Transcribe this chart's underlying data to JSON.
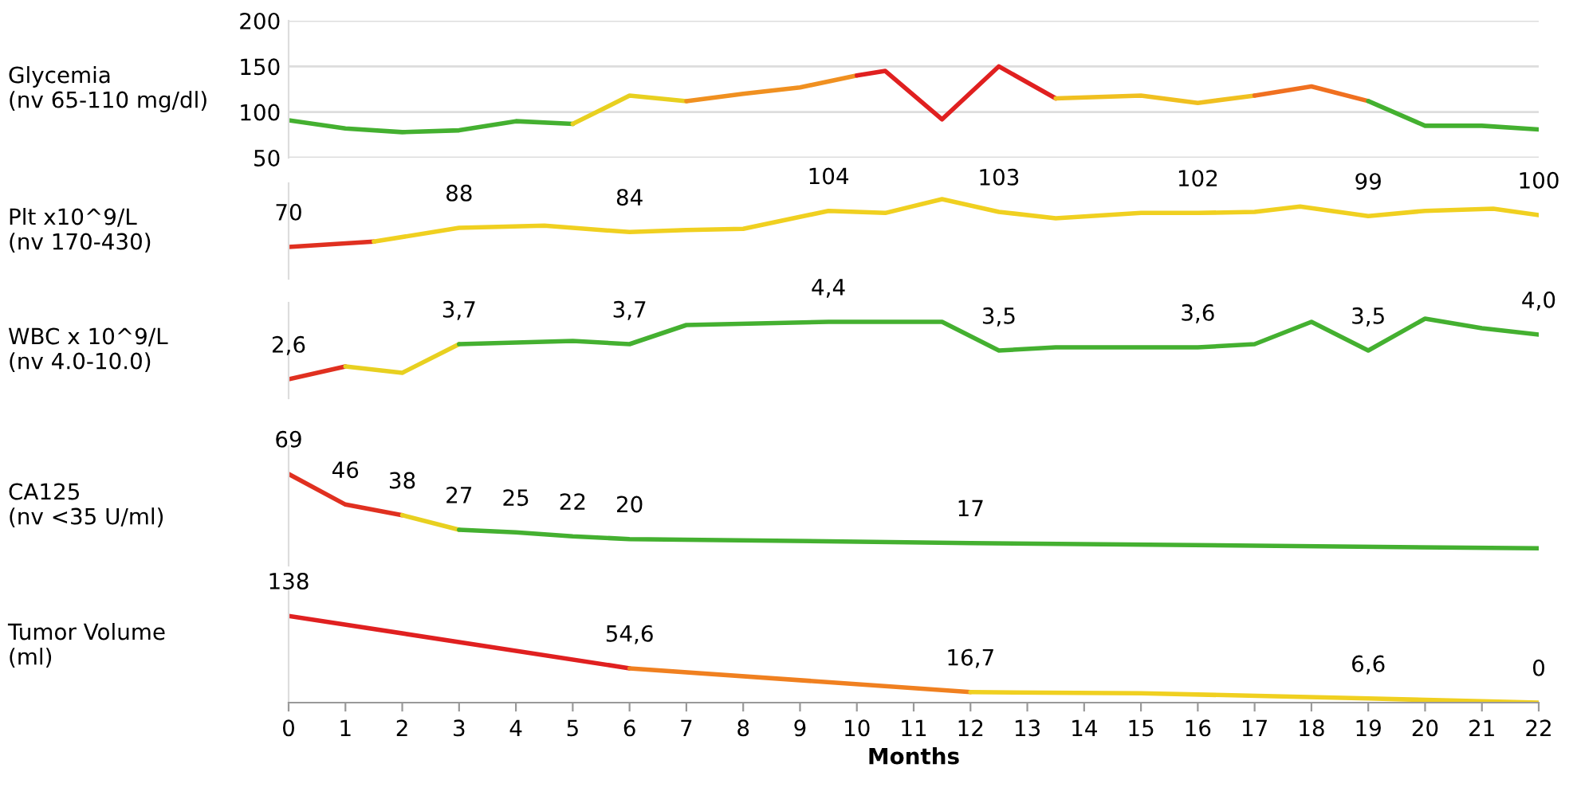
{
  "chart_data": [
    {
      "type": "line",
      "ylabel": "Glycemia\n(nv 65-110 mg/dl)",
      "xlim": [
        0,
        22
      ],
      "ylim": [
        50,
        200
      ],
      "yticks": [
        50,
        100,
        150,
        200
      ],
      "grid": "y",
      "tick_labels": "y",
      "series": [
        {
          "x": [
            0,
            1,
            2,
            3,
            4,
            5
          ],
          "values": [
            91,
            82,
            78,
            80,
            90,
            87
          ],
          "color": "#44b030"
        },
        {
          "x": [
            5,
            6,
            7
          ],
          "values": [
            87,
            118,
            112
          ],
          "color": "#e8d020"
        },
        {
          "x": [
            7,
            8,
            9,
            10
          ],
          "values": [
            112,
            120,
            127,
            140
          ],
          "color": "#f09020"
        },
        {
          "x": [
            10,
            10.5,
            11.5,
            12.5,
            13.5
          ],
          "values": [
            140,
            145,
            92,
            150,
            115
          ],
          "color": "#e02020"
        },
        {
          "x": [
            13.5,
            15,
            16,
            17
          ],
          "values": [
            115,
            118,
            110,
            118
          ],
          "color": "#f0c020"
        },
        {
          "x": [
            17,
            18,
            19
          ],
          "values": [
            118,
            128,
            112
          ],
          "color": "#f07020"
        },
        {
          "x": [
            19,
            20,
            21,
            22
          ],
          "values": [
            112,
            85,
            85,
            81
          ],
          "color": "#44b030"
        }
      ]
    },
    {
      "type": "line",
      "ylabel": "Plt x10^9/L\n(nv 170-430)",
      "xlim": [
        0,
        22
      ],
      "ylim": [
        40,
        130
      ],
      "tick_labels": false,
      "series": [
        {
          "x": [
            0,
            1.5
          ],
          "values": [
            70,
            75
          ],
          "value_labels": [
            "70",
            null
          ],
          "color": "#e03020"
        },
        {
          "x": [
            1.5,
            3,
            4.5,
            6,
            7,
            8,
            9.5,
            10.5,
            11.5,
            12.5,
            13.5,
            15,
            16,
            17,
            17.8,
            19,
            20,
            21.2,
            22
          ],
          "values": [
            75,
            88,
            90,
            84,
            86,
            87,
            104,
            102,
            115,
            103,
            97,
            102,
            102,
            103,
            108,
            99,
            104,
            106,
            100
          ],
          "value_labels": [
            null,
            "88",
            null,
            "84",
            null,
            null,
            "104",
            null,
            null,
            "103",
            null,
            null,
            "102",
            null,
            null,
            "99",
            null,
            null,
            "100"
          ],
          "color": "#f0d020"
        }
      ]
    },
    {
      "type": "line",
      "ylabel": "WBC x 10^9/L\n(nv 4.0-10.0)",
      "xlim": [
        0,
        22
      ],
      "ylim": [
        2,
        5
      ],
      "tick_labels": false,
      "series": [
        {
          "x": [
            0,
            1
          ],
          "values": [
            2.6,
            3.0
          ],
          "value_labels": [
            "2,6",
            null
          ],
          "color": "#e03020"
        },
        {
          "x": [
            1,
            2,
            3
          ],
          "values": [
            3.0,
            2.8,
            3.7
          ],
          "color": "#e8d020"
        },
        {
          "x": [
            3,
            5,
            6,
            7,
            9.5,
            11.5,
            12.5,
            13.5,
            16,
            17,
            18,
            19,
            20,
            21,
            22
          ],
          "values": [
            3.7,
            3.8,
            3.7,
            4.3,
            4.4,
            4.4,
            3.5,
            3.6,
            3.6,
            3.7,
            4.4,
            3.5,
            4.5,
            4.2,
            4.0
          ],
          "value_labels": [
            "3,7",
            null,
            "3,7",
            null,
            "4,4",
            null,
            "3,5",
            null,
            "3,6",
            null,
            null,
            "3,5",
            null,
            null,
            "4,0"
          ],
          "color": "#44b030"
        }
      ]
    },
    {
      "type": "line",
      "ylabel": "CA125\n(nv <35 U/ml)",
      "xlim": [
        0,
        22
      ],
      "ylim": [
        0,
        90
      ],
      "tick_labels": false,
      "series": [
        {
          "x": [
            0,
            1,
            2
          ],
          "values": [
            69,
            46,
            38
          ],
          "value_labels": [
            "69",
            "46",
            "38"
          ],
          "color": "#e03020"
        },
        {
          "x": [
            2,
            3
          ],
          "values": [
            38,
            27
          ],
          "color": "#e8d020"
        },
        {
          "x": [
            3,
            4,
            5,
            6,
            12,
            22
          ],
          "values": [
            27,
            25,
            22,
            20,
            17,
            13
          ],
          "value_labels": [
            "27",
            "25",
            "22",
            "20",
            "17",
            null
          ],
          "color": "#44b030"
        }
      ]
    },
    {
      "type": "line",
      "ylabel": "Tumor Volume\n(ml)",
      "xlabel": "Months",
      "xlim": [
        0,
        22
      ],
      "ylim": [
        0,
        180
      ],
      "xticks": [
        0,
        1,
        2,
        3,
        4,
        5,
        6,
        7,
        8,
        9,
        10,
        11,
        12,
        13,
        14,
        15,
        16,
        17,
        18,
        19,
        20,
        21,
        22
      ],
      "tick_labels": "x",
      "series": [
        {
          "x": [
            0,
            6
          ],
          "values": [
            138,
            54.6
          ],
          "value_labels": [
            "138",
            "54,6"
          ],
          "color": "#e02020"
        },
        {
          "x": [
            6,
            12
          ],
          "values": [
            54.6,
            16.7
          ],
          "value_labels": [
            null,
            "16,7"
          ],
          "color": "#f08020"
        },
        {
          "x": [
            12,
            15,
            19,
            22
          ],
          "values": [
            16.7,
            15,
            6.6,
            0
          ],
          "value_labels": [
            null,
            null,
            "6,6",
            "0"
          ],
          "color": "#f0d020"
        }
      ]
    }
  ]
}
